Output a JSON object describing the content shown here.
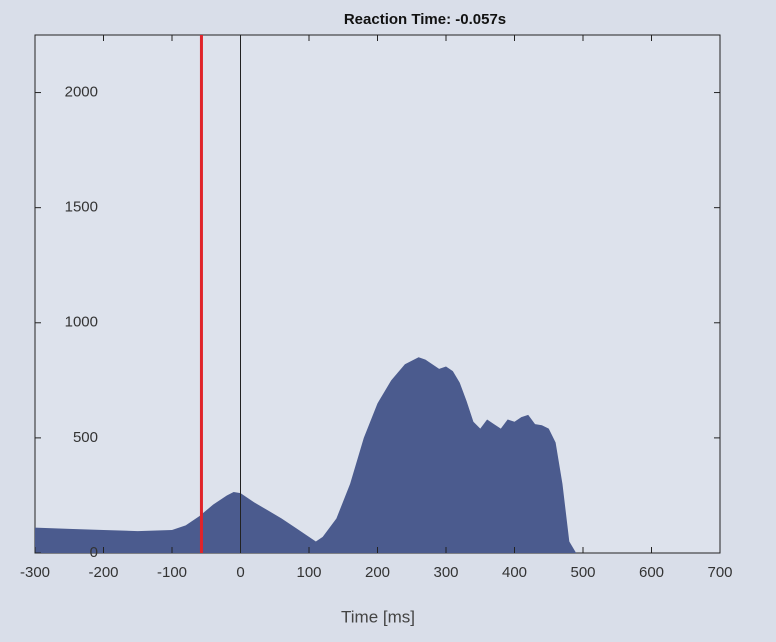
{
  "chart_data": {
    "type": "area",
    "title": "Reaction Time: -0.057s",
    "x_label": "Time [ms]",
    "x": [
      -300,
      -250,
      -200,
      -150,
      -100,
      -80,
      -60,
      -40,
      -20,
      -10,
      0,
      20,
      40,
      60,
      80,
      100,
      110,
      120,
      140,
      160,
      180,
      200,
      220,
      240,
      260,
      270,
      280,
      290,
      300,
      310,
      320,
      330,
      340,
      350,
      360,
      370,
      380,
      390,
      400,
      410,
      420,
      430,
      440,
      450,
      460,
      470,
      480,
      490
    ],
    "values": [
      110,
      105,
      100,
      95,
      100,
      120,
      160,
      210,
      250,
      265,
      260,
      220,
      185,
      150,
      110,
      70,
      50,
      70,
      150,
      300,
      500,
      650,
      750,
      820,
      850,
      840,
      820,
      800,
      810,
      790,
      740,
      660,
      570,
      540,
      580,
      560,
      540,
      580,
      570,
      590,
      600,
      560,
      555,
      540,
      480,
      300,
      50,
      0
    ],
    "color": "#4b5b8e",
    "vlines": [
      {
        "x": -57,
        "color": "#e0242a"
      },
      {
        "x": 0,
        "color": "#222222"
      }
    ],
    "xlim": [
      -300,
      700
    ],
    "xticks": [
      -300,
      -200,
      -100,
      0,
      100,
      200,
      300,
      400,
      500,
      600,
      700
    ],
    "ylim": [
      0,
      2250
    ],
    "yticks": [
      0,
      500,
      1000,
      1500,
      2000
    ]
  }
}
